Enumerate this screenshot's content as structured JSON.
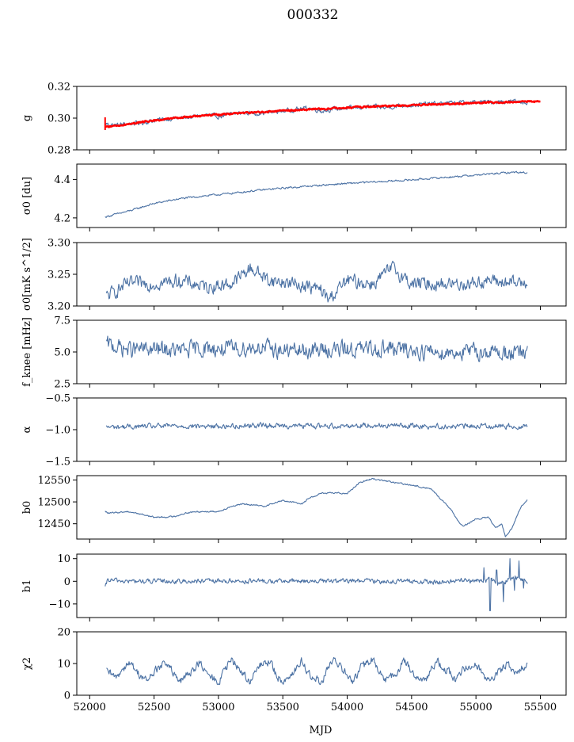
{
  "figure": {
    "title": "000332",
    "xlabel": "MJD"
  },
  "colors": {
    "series": "#4c72a4",
    "fit": "#ff0000",
    "axes": "#000000"
  },
  "chart_data": [
    {
      "type": "line",
      "name": "g",
      "ylabel": "g",
      "ylim": [
        0.28,
        0.32
      ],
      "yticks": [
        "0.28",
        "0.30",
        "0.32"
      ],
      "xlim": [
        51900,
        55700
      ],
      "show_xticklabels": false,
      "series": [
        {
          "name": "g",
          "color": "#4c72a4",
          "x": [
            52120,
            52200,
            52300,
            52400,
            52500,
            52600,
            52700,
            52800,
            52900,
            53000,
            53100,
            53200,
            53300,
            53400,
            53500,
            53600,
            53700,
            53800,
            53900,
            54000,
            54100,
            54200,
            54300,
            54400,
            54500,
            54600,
            54700,
            54800,
            54900,
            55000,
            55100,
            55200,
            55300,
            55400
          ],
          "y": [
            0.2965,
            0.2955,
            0.2965,
            0.297,
            0.2985,
            0.2995,
            0.3,
            0.3008,
            0.302,
            0.301,
            0.3025,
            0.3035,
            0.303,
            0.3035,
            0.3045,
            0.3055,
            0.3065,
            0.3045,
            0.3058,
            0.3062,
            0.3068,
            0.3072,
            0.3065,
            0.3078,
            0.3082,
            0.3088,
            0.3092,
            0.3095,
            0.3098,
            0.31,
            0.3102,
            0.3105,
            0.3106,
            0.31
          ],
          "noise": 0.0012
        },
        {
          "name": "fit",
          "color": "#ff0000",
          "x": [
            52120,
            52200,
            52400,
            52600,
            52800,
            53000,
            53200,
            53400,
            53600,
            53800,
            54000,
            54200,
            54400,
            54600,
            54800,
            55000,
            55200,
            55400,
            55500
          ],
          "y": [
            0.2945,
            0.295,
            0.2975,
            0.2995,
            0.301,
            0.3022,
            0.3033,
            0.3042,
            0.305,
            0.3058,
            0.3066,
            0.3073,
            0.3079,
            0.3085,
            0.309,
            0.3096,
            0.31,
            0.3105,
            0.3103
          ],
          "noise": 0.0004
        }
      ]
    },
    {
      "type": "line",
      "name": "sigma0",
      "ylabel": "σ0 [du]",
      "ylim": [
        4.15,
        4.48
      ],
      "yticks": [
        "4.2",
        "4.4"
      ],
      "xlim": [
        51900,
        55700
      ],
      "show_xticklabels": false,
      "series": [
        {
          "name": "sigma0",
          "color": "#4c72a4",
          "x": [
            52120,
            52300,
            52500,
            52700,
            52900,
            53100,
            53300,
            53500,
            53700,
            53900,
            54100,
            54300,
            54500,
            54700,
            54900,
            55100,
            55300,
            55400
          ],
          "y": [
            4.205,
            4.235,
            4.275,
            4.3,
            4.315,
            4.328,
            4.343,
            4.355,
            4.365,
            4.375,
            4.383,
            4.39,
            4.398,
            4.408,
            4.418,
            4.428,
            4.438,
            4.435
          ],
          "noise": 0.004
        }
      ]
    },
    {
      "type": "line",
      "name": "sigma0_mk",
      "ylabel": "σ0[mK s^1/2]",
      "ylim": [
        3.2,
        3.3
      ],
      "yticks": [
        "3.20",
        "3.25",
        "3.30"
      ],
      "xlim": [
        51900,
        55700
      ],
      "show_xticklabels": false,
      "series": [
        {
          "name": "sigma0_mk",
          "color": "#4c72a4",
          "x": [
            52130,
            52300,
            52500,
            52700,
            52900,
            53100,
            53250,
            53400,
            53600,
            53800,
            53850,
            54000,
            54200,
            54350,
            54500,
            54700,
            54900,
            55100,
            55300,
            55400
          ],
          "y": [
            3.215,
            3.235,
            3.235,
            3.24,
            3.23,
            3.235,
            3.26,
            3.24,
            3.235,
            3.225,
            3.21,
            3.24,
            3.235,
            3.26,
            3.235,
            3.235,
            3.235,
            3.24,
            3.235,
            3.24
          ],
          "noise": 0.009
        }
      ]
    },
    {
      "type": "line",
      "name": "fknee",
      "ylabel": "f_knee [mHz]",
      "ylim": [
        2.5,
        7.5
      ],
      "yticks": [
        "2.5",
        "5.0",
        "7.5"
      ],
      "xlim": [
        51900,
        55700
      ],
      "show_xticklabels": false,
      "series": [
        {
          "name": "fknee",
          "color": "#4c72a4",
          "x": [
            52130,
            52300,
            52500,
            52700,
            52900,
            53100,
            53300,
            53500,
            53700,
            53900,
            54100,
            54300,
            54500,
            54700,
            54900,
            55100,
            55300,
            55400
          ],
          "y": [
            5.6,
            5.2,
            5.2,
            5.1,
            5.3,
            5.2,
            5.4,
            5.1,
            5.1,
            5.2,
            5.2,
            5.3,
            5.1,
            5.0,
            5.0,
            5.0,
            4.9,
            4.8
          ],
          "noise": 0.55
        }
      ]
    },
    {
      "type": "line",
      "name": "alpha",
      "ylabel": "α",
      "ylim": [
        -1.5,
        -0.5
      ],
      "yticks": [
        "−1.5",
        "−1.0",
        "−0.5"
      ],
      "xlim": [
        51900,
        55700
      ],
      "show_xticklabels": false,
      "series": [
        {
          "name": "alpha",
          "color": "#4c72a4",
          "x": [
            52130,
            52400,
            52700,
            53000,
            53300,
            53600,
            53900,
            54200,
            54500,
            54800,
            55100,
            55400
          ],
          "y": [
            -0.96,
            -0.95,
            -0.94,
            -0.95,
            -0.93,
            -0.94,
            -0.94,
            -0.93,
            -0.94,
            -0.95,
            -0.94,
            -0.95
          ],
          "noise": 0.035
        }
      ]
    },
    {
      "type": "line",
      "name": "b0",
      "ylabel": "b0",
      "ylim": [
        12415,
        12560
      ],
      "yticks": [
        "12450",
        "12500",
        "12550"
      ],
      "xlim": [
        51900,
        55700
      ],
      "show_xticklabels": false,
      "series": [
        {
          "name": "b0",
          "color": "#4c72a4",
          "x": [
            52120,
            52150,
            52300,
            52400,
            52500,
            52650,
            52750,
            52850,
            53000,
            53100,
            53200,
            53350,
            53500,
            53650,
            53700,
            53800,
            53900,
            54000,
            54100,
            54200,
            54350,
            54500,
            54650,
            54800,
            54850,
            54900,
            55000,
            55100,
            55150,
            55200,
            55230,
            55280,
            55350,
            55400
          ],
          "y": [
            12478,
            12474,
            12478,
            12472,
            12465,
            12466,
            12475,
            12478,
            12478,
            12490,
            12495,
            12490,
            12503,
            12496,
            12508,
            12520,
            12520,
            12520,
            12545,
            12553,
            12545,
            12538,
            12530,
            12485,
            12460,
            12445,
            12460,
            12465,
            12440,
            12450,
            12420,
            12440,
            12490,
            12505
          ],
          "noise": 1.5
        }
      ]
    },
    {
      "type": "line",
      "name": "b1",
      "ylabel": "b1",
      "ylim": [
        -16,
        12
      ],
      "yticks": [
        "−10",
        "0",
        "10"
      ],
      "xlim": [
        51900,
        55700
      ],
      "show_xticklabels": false,
      "series": [
        {
          "name": "b1",
          "color": "#4c72a4",
          "x": [
            52120,
            52140,
            52300,
            52500,
            52700,
            52900,
            53100,
            53300,
            53500,
            53700,
            53900,
            54100,
            54300,
            54500,
            54700,
            54900,
            55000,
            55100,
            55200,
            55300,
            55400
          ],
          "y": [
            -3,
            0.5,
            0,
            0,
            0,
            0,
            0.2,
            0,
            0,
            0.2,
            0,
            0.3,
            0,
            0,
            -0.5,
            0.5,
            0,
            0.5,
            -1,
            2,
            0
          ],
          "noise": 0.9,
          "spikes": [
            [
              55060,
              6
            ],
            [
              55110,
              -13
            ],
            [
              55160,
              5
            ],
            [
              55215,
              -9
            ],
            [
              55265,
              10
            ],
            [
              55300,
              -4
            ],
            [
              55335,
              9
            ],
            [
              55370,
              -3
            ]
          ]
        }
      ]
    },
    {
      "type": "line",
      "name": "chi2",
      "ylabel": "χ2",
      "ylim": [
        0,
        20
      ],
      "yticks": [
        "0",
        "10",
        "20"
      ],
      "xlim": [
        51900,
        55700
      ],
      "show_xticklabels": true,
      "xticks": [
        "52000",
        "52500",
        "53000",
        "53500",
        "54000",
        "54500",
        "55000",
        "55500"
      ],
      "series": [
        {
          "name": "chi2",
          "color": "#4c72a4",
          "x": [
            52130,
            52200,
            52250,
            52300,
            52400,
            52450,
            52500,
            52600,
            52650,
            52700,
            52800,
            52850,
            52900,
            53000,
            53050,
            53100,
            53200,
            53250,
            53300,
            53400,
            53450,
            53500,
            53600,
            53650,
            53700,
            53800,
            53850,
            53900,
            54000,
            54050,
            54100,
            54200,
            54250,
            54300,
            54400,
            54450,
            54500,
            54600,
            54650,
            54700,
            54800,
            54850,
            54900,
            55000,
            55050,
            55100,
            55200,
            55250,
            55300,
            55350,
            55400
          ],
          "y": [
            7.5,
            5.5,
            8,
            10.5,
            6,
            4.5,
            7.5,
            10.5,
            6.5,
            4,
            8,
            10.5,
            7,
            4,
            8,
            11,
            6.5,
            4,
            8.5,
            11,
            6,
            4.5,
            8,
            11,
            6.5,
            4,
            8.5,
            11,
            6.5,
            4,
            8.5,
            11.5,
            7,
            4.5,
            8,
            11,
            7,
            4.5,
            8,
            10.5,
            7,
            4.5,
            8,
            10.5,
            7,
            4.5,
            8,
            10,
            6,
            9,
            9.5
          ],
          "noise": 1.1
        }
      ]
    }
  ]
}
